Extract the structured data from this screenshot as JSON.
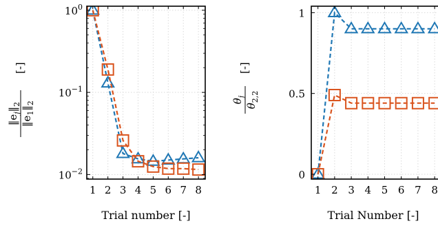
{
  "chart_data": [
    {
      "type": "line",
      "xlabel": "Trial number [-]",
      "ylabel_math": {
        "num": "‖e",
        "num_sub": "j",
        "num_tail": "‖",
        "num_norm": "2",
        "den": "‖e",
        "den_sub": "1",
        "den_tail": "‖",
        "den_norm": "2",
        "unit": "[-]"
      },
      "yscale": "log",
      "ylim": [
        0.0088,
        1.12
      ],
      "xlim": [
        0.6,
        8.45
      ],
      "x": [
        1,
        2,
        3,
        4,
        5,
        6,
        7,
        8
      ],
      "xticks": [
        "1",
        "2",
        "3",
        "4",
        "5",
        "6",
        "7",
        "8"
      ],
      "yticks": [
        {
          "value": 1,
          "base": "10",
          "exp": "0"
        },
        {
          "value": 0.1,
          "base": "10",
          "exp": "−1"
        },
        {
          "value": 0.01,
          "base": "10",
          "exp": "−2"
        }
      ],
      "grid": true,
      "series": [
        {
          "marker": "triangle",
          "color": "#1f77b4",
          "values": [
            1.0,
            0.13,
            0.018,
            0.0155,
            0.0145,
            0.015,
            0.0155,
            0.016
          ]
        },
        {
          "marker": "square",
          "color": "#d9541e",
          "values": [
            1.0,
            0.19,
            0.026,
            0.0145,
            0.0125,
            0.0118,
            0.0118,
            0.0115
          ]
        }
      ]
    },
    {
      "type": "line",
      "xlabel": "Trial Number [-]",
      "ylabel_math": {
        "num": "θ",
        "num_sub": "j",
        "den": "θ",
        "den_sub": "2,2",
        "unit": "[-]"
      },
      "yscale": "linear",
      "ylim": [
        -0.03,
        1.04
      ],
      "xlim": [
        0.6,
        8.45
      ],
      "x": [
        1,
        2,
        3,
        4,
        5,
        6,
        7,
        8
      ],
      "xticks": [
        "1",
        "2",
        "3",
        "4",
        "5",
        "6",
        "7",
        "8"
      ],
      "yticks": [
        {
          "value": 0,
          "label": "0"
        },
        {
          "value": 0.5,
          "label": "0.5"
        },
        {
          "value": 1,
          "label": "1"
        }
      ],
      "grid": true,
      "series": [
        {
          "marker": "triangle",
          "color": "#1f77b4",
          "values": [
            0.0,
            1.0,
            0.9,
            0.9,
            0.9,
            0.9,
            0.9,
            0.9
          ]
        },
        {
          "marker": "square",
          "color": "#d9541e",
          "values": [
            0.0,
            0.49,
            0.44,
            0.44,
            0.44,
            0.44,
            0.44,
            0.44
          ]
        }
      ]
    }
  ]
}
